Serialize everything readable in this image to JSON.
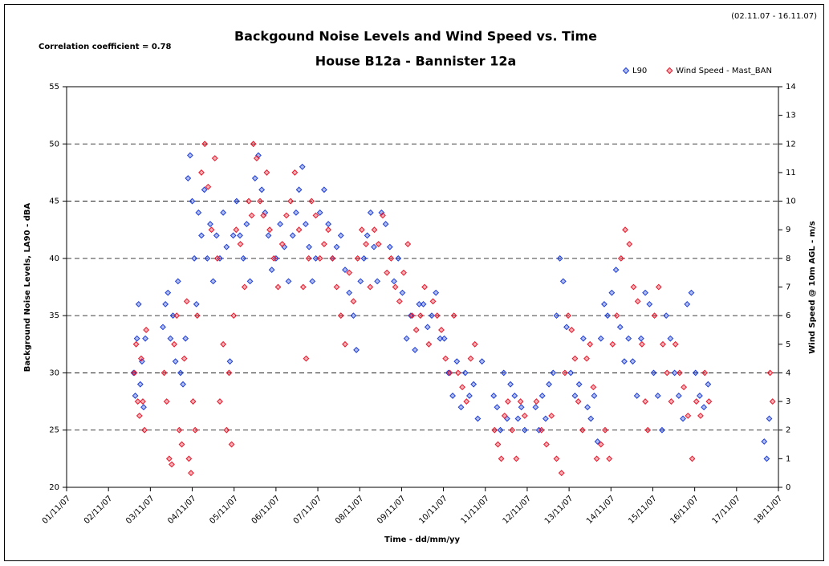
{
  "chart_data": {
    "type": "scatter",
    "title": "Backgound Noise Levels and Wind Speed vs. Time",
    "subtitle": "House B12a - Bannister 12a",
    "period": "(02.11.07 - 16.11.07)",
    "annotation": "Correlation coefficient = 0.78",
    "xlabel": "Time - dd/mm/yy",
    "ylabel": "Background Noise Levels, LA90 - dBA",
    "y2label": "Wind Speed @ 10m AGL - m/s",
    "legend": "top-right",
    "grid": true,
    "xlim": [
      1,
      18
    ],
    "xticks": [
      {
        "value": 1,
        "label": "01/11/07"
      },
      {
        "value": 2,
        "label": "02/11/07"
      },
      {
        "value": 3,
        "label": "03/11/07"
      },
      {
        "value": 4,
        "label": "04/11/07"
      },
      {
        "value": 5,
        "label": "05/11/07"
      },
      {
        "value": 6,
        "label": "06/11/07"
      },
      {
        "value": 7,
        "label": "07/11/07"
      },
      {
        "value": 8,
        "label": "08/11/07"
      },
      {
        "value": 9,
        "label": "09/11/07"
      },
      {
        "value": 10,
        "label": "10/11/07"
      },
      {
        "value": 11,
        "label": "11/11/07"
      },
      {
        "value": 12,
        "label": "12/11/07"
      },
      {
        "value": 13,
        "label": "13/11/07"
      },
      {
        "value": 14,
        "label": "14/11/07"
      },
      {
        "value": 15,
        "label": "15/11/07"
      },
      {
        "value": 16,
        "label": "16/11/07"
      },
      {
        "value": 17,
        "label": "17/11/07"
      },
      {
        "value": 18,
        "label": "18/11/07"
      }
    ],
    "ylim": [
      20,
      55
    ],
    "yticks": [
      20,
      25,
      30,
      35,
      40,
      45,
      50,
      55
    ],
    "y2lim": [
      0,
      14
    ],
    "y2ticks": [
      0,
      1,
      2,
      3,
      4,
      5,
      6,
      7,
      8,
      9,
      10,
      11,
      12,
      13,
      14
    ],
    "series": [
      {
        "name": "L90",
        "color": "#1f3fd6",
        "x": [
          2.6,
          2.64,
          2.68,
          2.72,
          2.76,
          2.8,
          2.84,
          2.88,
          3.3,
          3.36,
          3.42,
          3.48,
          3.54,
          3.6,
          3.66,
          3.72,
          3.78,
          3.84,
          3.9,
          3.95,
          4.0,
          4.05,
          4.1,
          4.15,
          4.22,
          4.29,
          4.36,
          4.43,
          4.5,
          4.58,
          4.66,
          4.74,
          4.82,
          4.9,
          4.98,
          5.06,
          5.14,
          5.22,
          5.3,
          5.38,
          5.5,
          5.58,
          5.66,
          5.74,
          5.82,
          5.9,
          6.0,
          6.1,
          6.2,
          6.3,
          6.4,
          6.48,
          6.55,
          6.63,
          6.71,
          6.79,
          6.87,
          6.95,
          7.05,
          7.15,
          7.25,
          7.35,
          7.45,
          7.55,
          7.65,
          7.75,
          7.85,
          7.92,
          8.02,
          8.1,
          8.18,
          8.26,
          8.34,
          8.42,
          8.52,
          8.62,
          8.72,
          8.82,
          8.92,
          9.02,
          9.12,
          9.22,
          9.32,
          9.42,
          9.52,
          9.62,
          9.72,
          9.82,
          9.92,
          10.02,
          10.12,
          10.22,
          10.32,
          10.42,
          10.52,
          10.62,
          10.72,
          10.82,
          10.92,
          11.2,
          11.28,
          11.36,
          11.44,
          11.52,
          11.6,
          11.7,
          11.78,
          11.86,
          11.94,
          12.2,
          12.28,
          12.36,
          12.44,
          12.52,
          12.62,
          12.7,
          12.78,
          12.86,
          12.94,
          13.04,
          13.14,
          13.24,
          13.34,
          13.44,
          13.52,
          13.6,
          13.68,
          13.76,
          13.84,
          13.92,
          14.02,
          14.12,
          14.22,
          14.32,
          14.42,
          14.52,
          14.62,
          14.72,
          14.82,
          14.92,
          15.02,
          15.12,
          15.22,
          15.32,
          15.42,
          15.52,
          15.62,
          15.72,
          15.82,
          15.92,
          16.02,
          16.12,
          16.22,
          16.32,
          17.66,
          17.72,
          17.78
        ],
        "values": [
          30,
          28,
          33,
          36,
          29,
          31,
          27,
          33,
          34,
          36,
          37,
          33,
          35,
          31,
          38,
          30,
          29,
          33,
          47,
          49,
          45,
          40,
          36,
          44,
          42,
          46,
          40,
          43,
          38,
          42,
          40,
          44,
          41,
          31,
          42,
          45,
          42,
          40,
          43,
          38,
          47,
          49,
          46,
          44,
          42,
          39,
          40,
          43,
          41,
          38,
          42,
          44,
          46,
          48,
          43,
          41,
          38,
          40,
          44,
          46,
          43,
          40,
          41,
          42,
          39,
          37,
          35,
          32,
          38,
          40,
          42,
          44,
          41,
          38,
          44,
          43,
          41,
          38,
          40,
          37,
          33,
          35,
          32,
          36,
          36,
          34,
          35,
          37,
          33,
          33,
          30,
          28,
          31,
          27,
          30,
          28,
          29,
          26,
          31,
          28,
          27,
          25,
          30,
          26,
          29,
          28,
          26,
          27,
          25,
          27,
          25,
          28,
          26,
          29,
          30,
          35,
          40,
          38,
          34,
          30,
          28,
          29,
          33,
          27,
          26,
          28,
          24,
          33,
          36,
          35,
          37,
          39,
          34,
          31,
          33,
          31,
          28,
          33,
          37,
          36,
          30,
          28,
          25,
          35,
          33,
          30,
          28,
          26,
          36,
          37,
          30,
          28,
          27,
          29,
          24,
          22.5,
          26
        ]
      },
      {
        "name": "Wind Speed - Mast_BAN",
        "color": "#e8192c",
        "axis": "y2",
        "x": [
          2.62,
          2.66,
          2.7,
          2.74,
          2.78,
          2.82,
          2.86,
          2.9,
          3.33,
          3.39,
          3.45,
          3.51,
          3.57,
          3.63,
          3.69,
          3.75,
          3.81,
          3.87,
          3.92,
          3.97,
          4.02,
          4.07,
          4.12,
          4.22,
          4.3,
          4.38,
          4.46,
          4.54,
          4.6,
          4.66,
          4.74,
          4.82,
          4.88,
          4.94,
          4.99,
          5.05,
          5.15,
          5.25,
          5.35,
          5.42,
          5.46,
          5.54,
          5.62,
          5.7,
          5.78,
          5.85,
          5.95,
          6.05,
          6.15,
          6.25,
          6.35,
          6.45,
          6.55,
          6.65,
          6.72,
          6.78,
          6.85,
          6.95,
          7.05,
          7.15,
          7.25,
          7.35,
          7.45,
          7.55,
          7.65,
          7.75,
          7.85,
          7.95,
          8.05,
          8.15,
          8.25,
          8.35,
          8.45,
          8.55,
          8.65,
          8.75,
          8.85,
          8.95,
          9.05,
          9.15,
          9.25,
          9.35,
          9.45,
          9.55,
          9.65,
          9.75,
          9.85,
          9.95,
          10.05,
          10.15,
          10.25,
          10.35,
          10.45,
          10.55,
          10.65,
          10.75,
          11.22,
          11.3,
          11.38,
          11.46,
          11.54,
          11.64,
          11.74,
          11.84,
          11.94,
          12.22,
          12.34,
          12.46,
          12.58,
          12.7,
          12.82,
          12.9,
          12.98,
          13.06,
          13.14,
          13.22,
          13.32,
          13.42,
          13.5,
          13.58,
          13.66,
          13.76,
          13.86,
          13.96,
          14.04,
          14.14,
          14.24,
          14.34,
          14.44,
          14.54,
          14.64,
          14.74,
          14.82,
          14.88,
          15.04,
          15.14,
          15.24,
          15.34,
          15.44,
          15.54,
          15.64,
          15.74,
          15.84,
          15.94,
          16.04,
          16.14,
          16.24,
          16.34,
          17.8,
          17.86
        ],
        "values": [
          4,
          5,
          3,
          2.5,
          4.5,
          3,
          2,
          5.5,
          4,
          3,
          1,
          0.8,
          5,
          6,
          2,
          1.5,
          4.5,
          6.5,
          1,
          0.5,
          3,
          2,
          6,
          11,
          12,
          10.5,
          9,
          11.5,
          8,
          3,
          5,
          2,
          4,
          1.5,
          6,
          9,
          8.5,
          7,
          10,
          9.5,
          12,
          11.5,
          10,
          9.5,
          11,
          9,
          8,
          7,
          8.5,
          9.5,
          10,
          11,
          9,
          7,
          4.5,
          8,
          10,
          9.5,
          8,
          8.5,
          9,
          8,
          7,
          6,
          5,
          7.5,
          6.5,
          8,
          9,
          8.5,
          7,
          9,
          8.5,
          9.5,
          7.5,
          8,
          7,
          6.5,
          7.5,
          8.5,
          6,
          5.5,
          6,
          7,
          5,
          6.5,
          6,
          5.5,
          4.5,
          4,
          6,
          4,
          3.5,
          3,
          4.5,
          5,
          2,
          1.5,
          1,
          2.5,
          3,
          2,
          1,
          3,
          2.5,
          3,
          2,
          1.5,
          2.5,
          1,
          0.5,
          4,
          6,
          5.5,
          4.5,
          3,
          2,
          4.5,
          5,
          3.5,
          1,
          1.5,
          2,
          1,
          5,
          6,
          8,
          9,
          8.5,
          7,
          6.5,
          5,
          3,
          2,
          6,
          7,
          5,
          4,
          3,
          5,
          4,
          3.5,
          2.5,
          1,
          3,
          2.5,
          4,
          3,
          4,
          3
        ]
      }
    ]
  }
}
